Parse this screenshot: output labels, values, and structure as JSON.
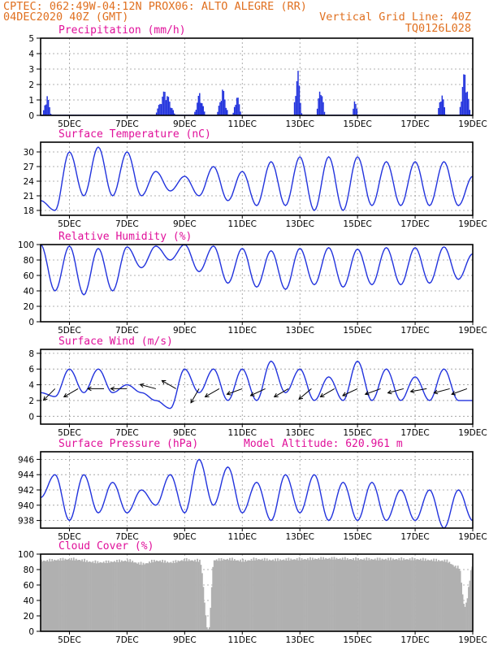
{
  "header": {
    "left1": "CPTEC:   062:49W-04:12N  PROX06: ALTO ALEGRE (RR)",
    "left2": "04DEC2020 40Z (GMT)",
    "right2": "Vertical Grid Line: 40Z",
    "right3": "TQ0126L028"
  },
  "x_labels": [
    "5DEC",
    "7DEC",
    "9DEC",
    "11DEC",
    "13DEC",
    "15DEC",
    "17DEC",
    "19DEC"
  ],
  "colors": {
    "header": "#e07020",
    "title": "#e0109a",
    "series": "#2233dd",
    "cloud": "#b0b0b0",
    "bars": "#2233dd"
  },
  "chart_data": [
    {
      "type": "bar",
      "title": "Precipitation (mm/h)",
      "ylim": [
        0,
        5
      ],
      "yticks": [
        0,
        1,
        2,
        3,
        4,
        5
      ],
      "x_unit": "day",
      "x_range": [
        4.0,
        19.0
      ],
      "bursts": [
        {
          "x": 4.2,
          "peak": 1.5,
          "width": 0.15
        },
        {
          "x": 8.3,
          "peak": 1.8,
          "width": 0.35
        },
        {
          "x": 9.5,
          "peak": 1.6,
          "width": 0.2
        },
        {
          "x": 10.3,
          "peak": 1.9,
          "width": 0.2
        },
        {
          "x": 10.8,
          "peak": 1.5,
          "width": 0.15
        },
        {
          "x": 12.9,
          "peak": 3.3,
          "width": 0.15
        },
        {
          "x": 13.7,
          "peak": 2.2,
          "width": 0.15
        },
        {
          "x": 14.9,
          "peak": 1.3,
          "width": 0.1
        },
        {
          "x": 17.9,
          "peak": 1.7,
          "width": 0.15
        },
        {
          "x": 18.7,
          "peak": 3.2,
          "width": 0.2
        }
      ]
    },
    {
      "type": "line",
      "title": "Surface Temperature (nC)",
      "ylim": [
        17,
        32
      ],
      "yticks": [
        18,
        21,
        24,
        27,
        30
      ],
      "x": [
        4.0,
        4.5,
        5.0,
        5.5,
        6.0,
        6.5,
        7.0,
        7.5,
        8.0,
        8.5,
        9.0,
        9.5,
        10.0,
        10.5,
        11.0,
        11.5,
        12.0,
        12.5,
        13.0,
        13.5,
        14.0,
        14.5,
        15.0,
        15.5,
        16.0,
        16.5,
        17.0,
        17.5,
        18.0,
        18.5,
        19.0
      ],
      "y": [
        20,
        18,
        30,
        21,
        31,
        21,
        30,
        21,
        26,
        22,
        25,
        21,
        27,
        20,
        26,
        19,
        28,
        19,
        29,
        18,
        29,
        18,
        29,
        19,
        28,
        19,
        28,
        19,
        28,
        19,
        25
      ]
    },
    {
      "type": "line",
      "title": "Relative Humidity (%)",
      "ylim": [
        0,
        100
      ],
      "yticks": [
        0,
        20,
        40,
        60,
        80,
        100
      ],
      "x": [
        4.0,
        4.5,
        5.0,
        5.5,
        6.0,
        6.5,
        7.0,
        7.5,
        8.0,
        8.5,
        9.0,
        9.5,
        10.0,
        10.5,
        11.0,
        11.5,
        12.0,
        12.5,
        13.0,
        13.5,
        14.0,
        14.5,
        15.0,
        15.5,
        16.0,
        16.5,
        17.0,
        17.5,
        18.0,
        18.5,
        19.0
      ],
      "y": [
        100,
        40,
        98,
        35,
        95,
        40,
        97,
        70,
        98,
        80,
        100,
        65,
        98,
        50,
        95,
        45,
        92,
        42,
        95,
        48,
        96,
        45,
        94,
        48,
        96,
        48,
        96,
        50,
        97,
        55,
        88
      ]
    },
    {
      "type": "line",
      "title": "Surface Wind (m/s)",
      "ylim": [
        -1,
        8.5
      ],
      "yticks": [
        0,
        2,
        4,
        6,
        8
      ],
      "x": [
        4.0,
        4.5,
        5.0,
        5.5,
        6.0,
        6.5,
        7.0,
        7.5,
        8.0,
        8.5,
        9.0,
        9.5,
        10.0,
        10.5,
        11.0,
        11.5,
        12.0,
        12.5,
        13.0,
        13.5,
        14.0,
        14.5,
        15.0,
        15.5,
        16.0,
        16.5,
        17.0,
        17.5,
        18.0,
        18.5,
        19.0
      ],
      "y": [
        3,
        2.5,
        6,
        3,
        6,
        3,
        4,
        3,
        2,
        1,
        6,
        3,
        6,
        2,
        6,
        2,
        7,
        3,
        6,
        2,
        5,
        2,
        7,
        2,
        6,
        2,
        5,
        2,
        6,
        2,
        2
      ],
      "arrows": [
        {
          "x": 4.5,
          "dir": -135
        },
        {
          "x": 5.3,
          "dir": -150
        },
        {
          "x": 6.2,
          "dir": 180
        },
        {
          "x": 7.0,
          "dir": 180
        },
        {
          "x": 8.0,
          "dir": 165
        },
        {
          "x": 8.7,
          "dir": 150
        },
        {
          "x": 9.5,
          "dir": -120
        },
        {
          "x": 10.2,
          "dir": -150
        },
        {
          "x": 11.0,
          "dir": -160
        },
        {
          "x": 11.8,
          "dir": -155
        },
        {
          "x": 12.6,
          "dir": -150
        },
        {
          "x": 13.4,
          "dir": -140
        },
        {
          "x": 14.2,
          "dir": -150
        },
        {
          "x": 15.0,
          "dir": -155
        },
        {
          "x": 15.8,
          "dir": -160
        },
        {
          "x": 16.6,
          "dir": -165
        },
        {
          "x": 17.4,
          "dir": -170
        },
        {
          "x": 18.2,
          "dir": -165
        },
        {
          "x": 18.8,
          "dir": -160
        }
      ]
    },
    {
      "type": "line",
      "title": "Surface Pressure (hPa)",
      "subtitle": "Model Altitude: 620.961 m",
      "ylim": [
        937,
        947
      ],
      "yticks": [
        938,
        940,
        942,
        944,
        946
      ],
      "x": [
        4.0,
        4.5,
        5.0,
        5.5,
        6.0,
        6.5,
        7.0,
        7.5,
        8.0,
        8.5,
        9.0,
        9.5,
        10.0,
        10.5,
        11.0,
        11.5,
        12.0,
        12.5,
        13.0,
        13.5,
        14.0,
        14.5,
        15.0,
        15.5,
        16.0,
        16.5,
        17.0,
        17.5,
        18.0,
        18.5,
        19.0
      ],
      "y": [
        941,
        944,
        938,
        944,
        939,
        943,
        939,
        942,
        940,
        944,
        939,
        946,
        940,
        945,
        939,
        943,
        938,
        944,
        939,
        944,
        938,
        943,
        938,
        943,
        938,
        942,
        938,
        942,
        937,
        942,
        938
      ]
    },
    {
      "type": "area",
      "title": "Cloud Cover (%)",
      "ylim": [
        0,
        100
      ],
      "yticks": [
        0,
        20,
        40,
        60,
        80,
        100
      ],
      "x": [
        4.0,
        5.0,
        6.0,
        7.0,
        7.5,
        8.0,
        8.5,
        9.0,
        9.5,
        9.8,
        10.0,
        10.5,
        11.0,
        11.5,
        12.0,
        13.0,
        14.0,
        15.0,
        16.0,
        17.0,
        17.5,
        18.0,
        18.5,
        18.7,
        19.0
      ],
      "y": [
        94,
        96,
        92,
        94,
        90,
        94,
        92,
        95,
        94,
        3,
        95,
        96,
        94,
        96,
        95,
        96,
        97,
        96,
        96,
        96,
        95,
        94,
        85,
        35,
        90
      ]
    }
  ]
}
